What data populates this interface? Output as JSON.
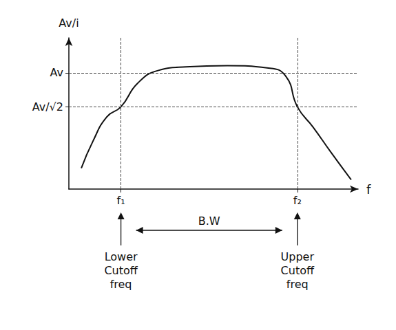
{
  "chart_data": {
    "type": "line",
    "x_label": "f",
    "y_label": "Av/i",
    "x": [
      0.43,
      0.83,
      1.31,
      1.8,
      2.38,
      3.1,
      4.05,
      5.48,
      6.9,
      7.5,
      7.9,
      8.45,
      9.05,
      9.76
    ],
    "values": [
      0.18,
      0.41,
      0.62,
      0.707,
      0.91,
      1.02,
      1.05,
      1.06,
      1.04,
      0.97,
      0.707,
      0.53,
      0.32,
      0.08
    ],
    "color": "#111111",
    "xlim": [
      0,
      10
    ],
    "ylim": [
      0,
      1.3
    ],
    "xticks": [
      {
        "value": 1.8,
        "label": "f₁"
      },
      {
        "value": 7.9,
        "label": "f₂"
      }
    ],
    "yticks": [
      {
        "value": 1,
        "label": "Av"
      },
      {
        "value": 0.707,
        "label": "Av/√2"
      }
    ],
    "grid": true,
    "annotations": [
      {
        "text": "Lower Cutoff freq",
        "x": 1.8
      },
      {
        "text": "B.W",
        "x": 4.85
      },
      {
        "text": "Upper Cutoff freq",
        "x": 7.9
      }
    ]
  }
}
